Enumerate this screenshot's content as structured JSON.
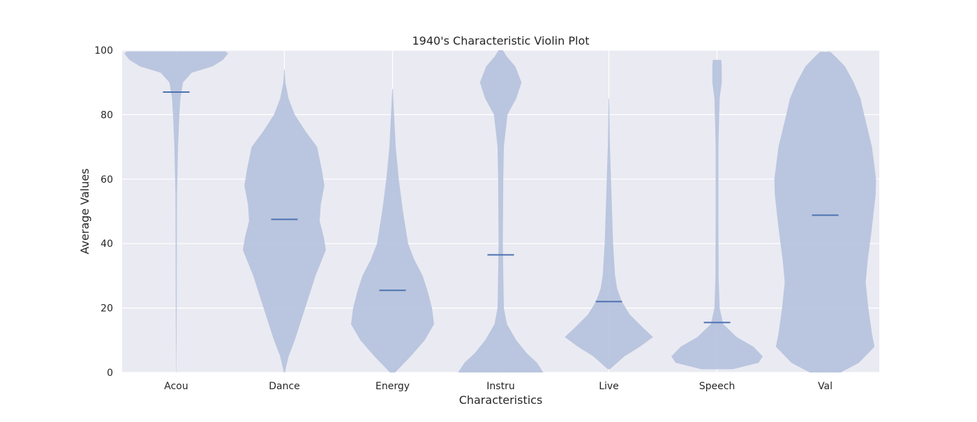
{
  "chart_data": {
    "type": "violin",
    "title": "1940's Characteristic Violin Plot",
    "xlabel": "Characteristics",
    "ylabel": "Average Values",
    "ylim": [
      0,
      100
    ],
    "yticks": [
      0,
      20,
      40,
      60,
      80,
      100
    ],
    "grid": true,
    "categories": [
      "Acou",
      "Dance",
      "Energy",
      "Instru",
      "Live",
      "Speech",
      "Val"
    ],
    "means": [
      87,
      47.5,
      25.5,
      36.5,
      22,
      15.5,
      48.8
    ],
    "density_profiles": [
      {
        "category": "Acou",
        "min": 0,
        "max": 99.6,
        "points": [
          [
            0,
            0.004
          ],
          [
            20,
            0.01
          ],
          [
            40,
            0.012
          ],
          [
            55,
            0.015
          ],
          [
            70,
            0.035
          ],
          [
            80,
            0.06
          ],
          [
            85,
            0.08
          ],
          [
            90,
            0.13
          ],
          [
            93,
            0.3
          ],
          [
            95,
            0.7
          ],
          [
            97,
            0.9
          ],
          [
            99,
            1.0
          ],
          [
            99.6,
            0.95
          ]
        ]
      },
      {
        "category": "Dance",
        "min": 0,
        "max": 94,
        "points": [
          [
            0,
            0.01
          ],
          [
            5,
            0.08
          ],
          [
            10,
            0.2
          ],
          [
            20,
            0.4
          ],
          [
            30,
            0.6
          ],
          [
            38,
            0.8
          ],
          [
            42,
            0.76
          ],
          [
            47,
            0.68
          ],
          [
            52,
            0.7
          ],
          [
            58,
            0.77
          ],
          [
            63,
            0.72
          ],
          [
            70,
            0.63
          ],
          [
            75,
            0.4
          ],
          [
            80,
            0.2
          ],
          [
            85,
            0.08
          ],
          [
            90,
            0.02
          ],
          [
            94,
            0.005
          ]
        ]
      },
      {
        "category": "Energy",
        "min": 0,
        "max": 88,
        "points": [
          [
            0,
            0.05
          ],
          [
            5,
            0.35
          ],
          [
            10,
            0.62
          ],
          [
            15,
            0.8
          ],
          [
            20,
            0.76
          ],
          [
            25,
            0.68
          ],
          [
            30,
            0.58
          ],
          [
            35,
            0.42
          ],
          [
            40,
            0.3
          ],
          [
            50,
            0.2
          ],
          [
            60,
            0.12
          ],
          [
            70,
            0.06
          ],
          [
            80,
            0.03
          ],
          [
            88,
            0.005
          ]
        ]
      },
      {
        "category": "Instru",
        "min": 0,
        "max": 100,
        "points": [
          [
            0,
            0.82
          ],
          [
            3,
            0.7
          ],
          [
            6,
            0.5
          ],
          [
            10,
            0.3
          ],
          [
            15,
            0.12
          ],
          [
            20,
            0.06
          ],
          [
            40,
            0.04
          ],
          [
            60,
            0.05
          ],
          [
            70,
            0.06
          ],
          [
            80,
            0.13
          ],
          [
            85,
            0.3
          ],
          [
            90,
            0.4
          ],
          [
            95,
            0.28
          ],
          [
            98,
            0.12
          ],
          [
            100,
            0.04
          ]
        ]
      },
      {
        "category": "Live",
        "min": 1,
        "max": 85,
        "points": [
          [
            1,
            0.02
          ],
          [
            5,
            0.3
          ],
          [
            8,
            0.6
          ],
          [
            11,
            0.85
          ],
          [
            14,
            0.65
          ],
          [
            18,
            0.4
          ],
          [
            22,
            0.25
          ],
          [
            26,
            0.16
          ],
          [
            30,
            0.12
          ],
          [
            35,
            0.1
          ],
          [
            40,
            0.08
          ],
          [
            50,
            0.06
          ],
          [
            60,
            0.04
          ],
          [
            70,
            0.02
          ],
          [
            85,
            0.005
          ]
        ]
      },
      {
        "category": "Speech",
        "min": 1,
        "max": 97,
        "points": [
          [
            1,
            0.3
          ],
          [
            3,
            0.8
          ],
          [
            5,
            0.88
          ],
          [
            8,
            0.7
          ],
          [
            11,
            0.38
          ],
          [
            15,
            0.12
          ],
          [
            20,
            0.05
          ],
          [
            30,
            0.03
          ],
          [
            50,
            0.025
          ],
          [
            70,
            0.025
          ],
          [
            85,
            0.05
          ],
          [
            90,
            0.09
          ],
          [
            95,
            0.09
          ],
          [
            97,
            0.08
          ]
        ]
      },
      {
        "category": "Val",
        "min": 0,
        "max": 99.5,
        "points": [
          [
            0,
            0.3
          ],
          [
            3,
            0.65
          ],
          [
            8,
            0.95
          ],
          [
            12,
            0.9
          ],
          [
            20,
            0.83
          ],
          [
            28,
            0.78
          ],
          [
            35,
            0.82
          ],
          [
            45,
            0.9
          ],
          [
            55,
            0.97
          ],
          [
            60,
            0.98
          ],
          [
            70,
            0.9
          ],
          [
            80,
            0.75
          ],
          [
            85,
            0.68
          ],
          [
            90,
            0.55
          ],
          [
            95,
            0.38
          ],
          [
            98,
            0.2
          ],
          [
            99.5,
            0.1
          ]
        ]
      }
    ],
    "colors": {
      "plot_background": "#eaeaf2",
      "grid": "#ffffff",
      "violin_fill": "#b5c2dd",
      "mean_line": "#4c72b0"
    }
  }
}
